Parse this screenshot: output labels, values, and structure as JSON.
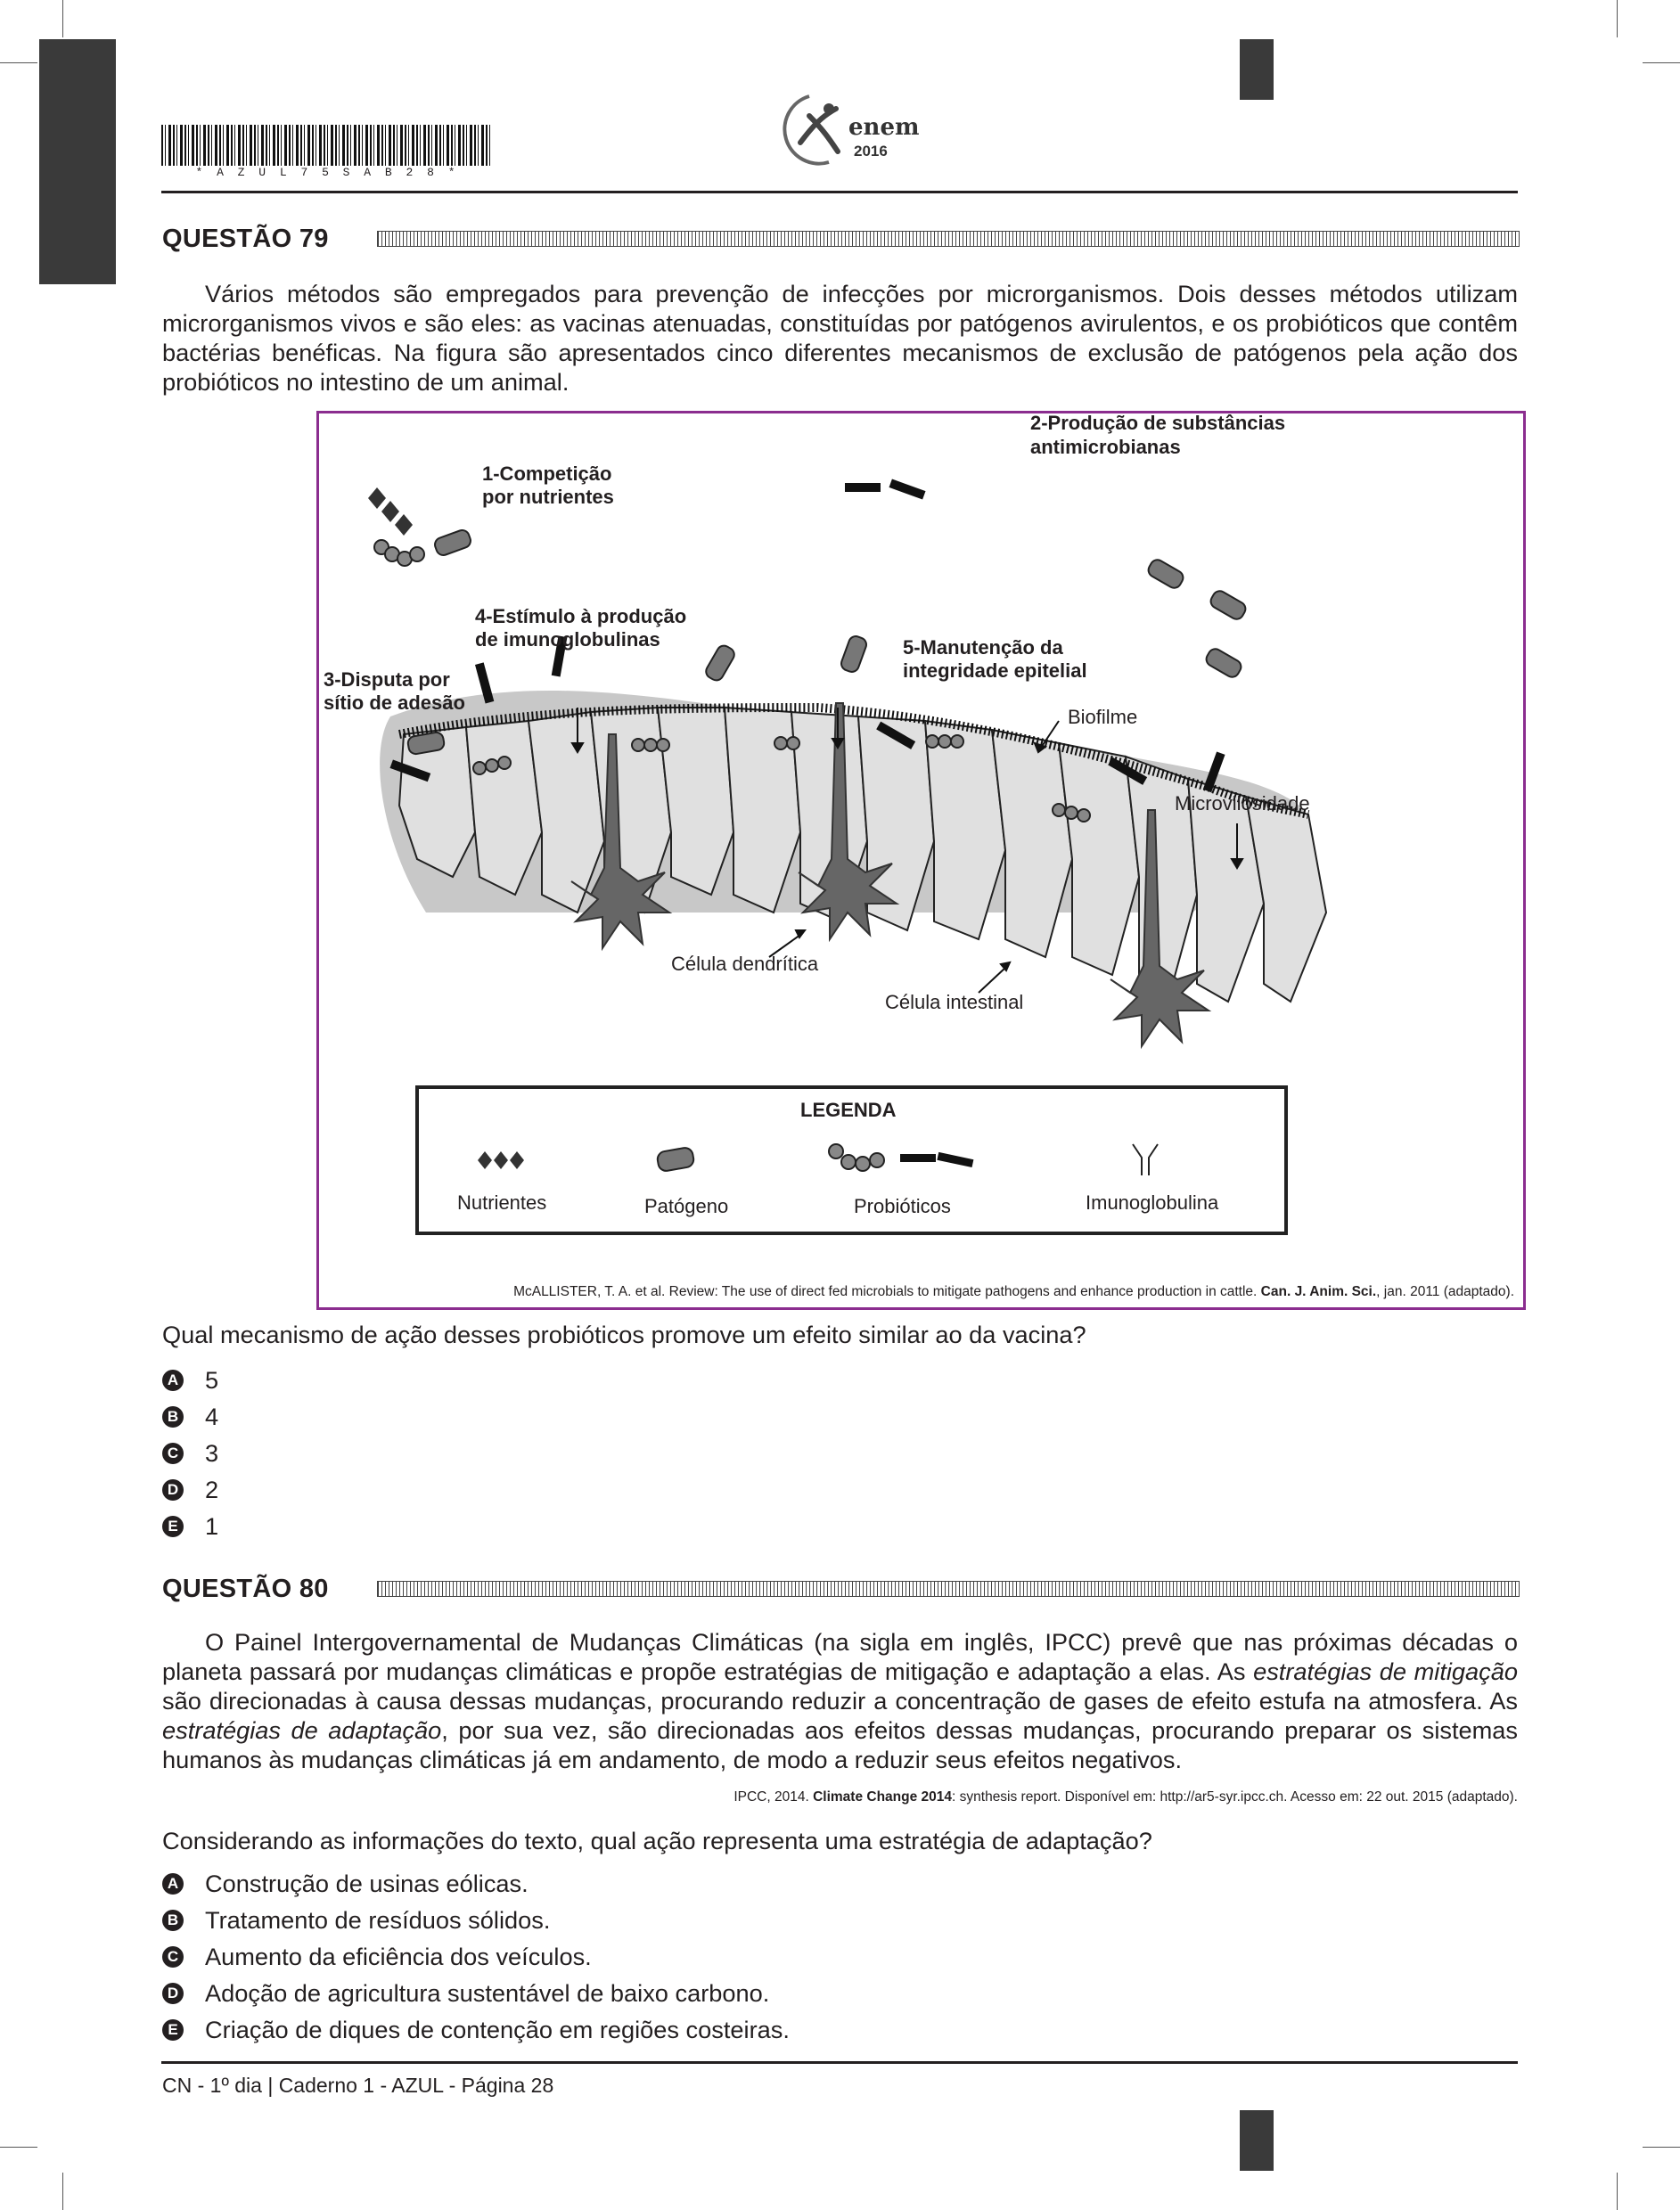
{
  "header": {
    "barcode_text": "* A Z U L 7 5 S A B 2 8 *",
    "logo_text": "enem",
    "logo_year": "2016"
  },
  "q79": {
    "title": "QUESTÃO 79",
    "paragraph": "Vários métodos são empregados para prevenção de infecções por microrganismos. Dois desses métodos utilizam microrganismos vivos e são eles: as vacinas atenuadas, constituídas por patógenos avirulentos, e os probióticos que contêm bactérias benéficas. Na figura são apresentados cinco diferentes mecanismos de exclusão de patógenos pela ação dos probióticos no intestino de um animal.",
    "figure": {
      "label1": [
        "1-Competição",
        "por nutrientes"
      ],
      "label2": [
        "2-Produção de substâncias",
        "antimicrobianas"
      ],
      "label3": [
        "3-Disputa por",
        "sítio de adesão"
      ],
      "label4": [
        "4-Estímulo à produção",
        "de imunoglobulinas"
      ],
      "label5": [
        "5-Manutenção da",
        "integridade epitelial"
      ],
      "biofilme": "Biofilme",
      "microvilosidade": "Microvilosidade",
      "celula_dendritica": "Célula dendrítica",
      "celula_intestinal": "Célula intestinal",
      "legend_title": "LEGENDA",
      "legend_items": [
        "Nutrientes",
        "Patógeno",
        "Probióticos",
        "Imunoglobulina"
      ]
    },
    "source": {
      "pre": "McALLISTER, T. A. et al. Review: The use of direct fed microbials to mitigate pathogens and enhance production in cattle. ",
      "bold": "Can. J. Anim. Sci.",
      "post": ", jan. 2011 (adaptado)."
    },
    "question": "Qual mecanismo de ação desses probióticos promove um efeito similar ao da vacina?",
    "options": [
      {
        "letter": "A",
        "text": "5"
      },
      {
        "letter": "B",
        "text": "4"
      },
      {
        "letter": "C",
        "text": "3"
      },
      {
        "letter": "D",
        "text": "2"
      },
      {
        "letter": "E",
        "text": "1"
      }
    ]
  },
  "q80": {
    "title": "QUESTÃO 80",
    "p_a": "O Painel Intergovernamental de Mudanças Climáticas (na sigla em inglês, IPCC) prevê que nas próximas décadas o planeta passará por mudanças climáticas e propõe estratégias de mitigação e adaptação a elas. As ",
    "p_italic1": "estratégias de mitigação",
    "p_b": " são direcionadas à causa dessas mudanças, procurando reduzir a concentração de gases de efeito estufa na atmosfera. As ",
    "p_italic2": "estratégias de adaptação",
    "p_c": ", por sua vez, são direcionadas aos efeitos dessas mudanças, procurando preparar os sistemas humanos às mudanças climáticas já em andamento, de modo a reduzir seus efeitos negativos.",
    "source": {
      "pre": "IPCC, 2014. ",
      "bold": "Climate Change 2014",
      "post": ": synthesis report. Disponível em: http://ar5-syr.ipcc.ch. Acesso em: 22 out. 2015 (adaptado)."
    },
    "question": "Considerando as informações do texto, qual ação representa uma estratégia de adaptação?",
    "options": [
      {
        "letter": "A",
        "text": "Construção de usinas eólicas."
      },
      {
        "letter": "B",
        "text": "Tratamento de resíduos sólidos."
      },
      {
        "letter": "C",
        "text": "Aumento da eficiência dos veículos."
      },
      {
        "letter": "D",
        "text": "Adoção de agricultura sustentável de baixo carbono."
      },
      {
        "letter": "E",
        "text": "Criação de diques de contenção em regiões costeiras."
      }
    ]
  },
  "footer": {
    "text": "CN - 1º dia | Caderno 1 - AZUL - Página 28"
  }
}
